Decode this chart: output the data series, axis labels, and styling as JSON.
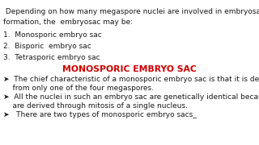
{
  "background_color": "#ffffff",
  "intro_line1": " Depending on how many megaspore nuclei are involved in embryosac",
  "intro_line2": "formation, the  embryosac may be:",
  "items": [
    "1.  Monosporic embryo sac",
    "2.  Bisporic  embryo sac",
    "3.  Tetrasporic embryo sac"
  ],
  "heading": "MONOSPORIC EMBRYO SAC",
  "heading_color": "#cc0000",
  "bullet_lines": [
    "➤  The chief characteristic of a monosporic embryo sac is that it is derived",
    "    from only one of the four megaspores.",
    "➤  All the nuclei in such an embryo sac are genetically identical because they",
    "    are derived through mitosis of a single nucleus.",
    "➤   There are two types of monosporic embryo sacs_"
  ],
  "text_color": "#1a1a1a",
  "font_size": 6.5,
  "heading_font_size": 7.8
}
